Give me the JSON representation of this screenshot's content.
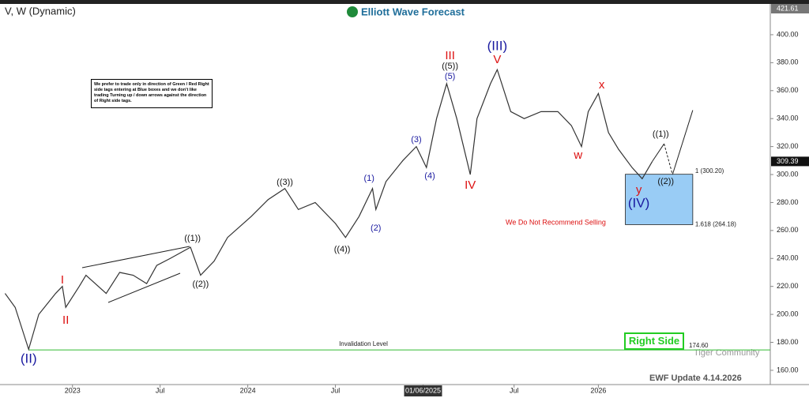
{
  "chart_data": {
    "type": "line",
    "title": "V, W (Dynamic)",
    "brand": "Elliott Wave Forecast",
    "note": "We prefer to trade only in direction of Green / Red Right side tags entering at Blue boxes and we don't like trading Turning up / down arrows against the direction of Right side tags.",
    "x": [
      -20,
      -17,
      -13,
      -10,
      -5,
      -3,
      -2,
      2,
      4,
      10,
      14,
      18,
      22,
      25,
      29,
      35,
      38,
      42,
      46,
      53,
      58,
      63,
      67,
      72,
      78,
      81,
      85,
      89,
      90,
      93,
      98,
      102,
      105,
      108,
      111,
      114,
      118,
      120,
      124,
      126,
      130,
      134,
      139,
      144,
      148,
      151,
      153,
      156,
      159,
      162,
      166,
      169,
      172
    ],
    "series": [
      {
        "name": "V",
        "color": "#333333",
        "values": [
          215,
          205,
          175,
          200,
          215,
          220,
          205,
          220,
          228,
          215,
          230,
          228,
          222,
          235,
          240,
          248,
          228,
          238,
          255,
          270,
          282,
          290,
          275,
          280,
          265,
          255,
          270,
          290,
          275,
          295,
          310,
          320,
          305,
          340,
          365,
          340,
          300,
          340,
          365,
          375,
          345,
          340,
          345,
          345,
          335,
          320,
          345,
          358,
          330,
          318,
          305,
          297,
          309.39
        ]
      }
    ],
    "xlim": [
      -21.5,
      207
    ],
    "xticks": [
      {
        "value": 0,
        "label": "2023"
      },
      {
        "value": 26,
        "label": "Jul"
      },
      {
        "value": 52,
        "label": "2024"
      },
      {
        "value": 78,
        "label": "Jul"
      },
      {
        "value": 104,
        "label": "01/06/2025"
      },
      {
        "value": 131,
        "label": "Jul"
      },
      {
        "value": 156,
        "label": "2026"
      }
    ],
    "ylim": [
      149.8,
      420.3
    ],
    "yticks": [
      {
        "value": 160,
        "label": "160.00"
      },
      {
        "value": 180,
        "label": "180.00"
      },
      {
        "value": 200,
        "label": "200.00"
      },
      {
        "value": 220,
        "label": "220.00"
      },
      {
        "value": 240,
        "label": "240.00"
      },
      {
        "value": 260,
        "label": "260.00"
      },
      {
        "value": 280,
        "label": "280.00"
      },
      {
        "value": 300,
        "label": "300.00"
      },
      {
        "value": 320,
        "label": "320.00"
      },
      {
        "value": 340,
        "label": "340.00"
      },
      {
        "value": 360,
        "label": "360.00"
      },
      {
        "value": 380,
        "label": "380.00"
      },
      {
        "value": 400,
        "label": "400.00"
      }
    ],
    "high_label": {
      "value": 421.61,
      "label": "421.61"
    },
    "last_label": {
      "value": 309.39,
      "label": "309.39"
    },
    "invalidation": {
      "value": 174.6,
      "label": "174.60",
      "text": "Invalidation Level",
      "start": -13
    },
    "box": {
      "x0": 164,
      "x1": 184,
      "top": 300.2,
      "bottom": 264.18,
      "top_label": "1 (300.20)",
      "bottom_label": "1.618 (264.18)",
      "color": "#99ccf5"
    },
    "projection": {
      "x": [
        172,
        175.5,
        178,
        184
      ],
      "values": [
        309.39,
        322,
        300,
        346
      ]
    },
    "annotations": [
      {
        "text": "(II)",
        "x": -13,
        "y": 167.9,
        "color": "#1a1aa0"
      },
      {
        "text": "I",
        "x": -3,
        "y": 224.4,
        "color": "#dd1111"
      },
      {
        "text": "II",
        "x": -2,
        "y": 195.6,
        "color": "#dd1111"
      },
      {
        "text": "((1))",
        "x": 35.6,
        "y": 254.3,
        "color": "#111111"
      },
      {
        "text": "((2))",
        "x": 38,
        "y": 221.5,
        "color": "#111111"
      },
      {
        "text": "((3))",
        "x": 63,
        "y": 294.4,
        "color": "#111111"
      },
      {
        "text": "((4))",
        "x": 80,
        "y": 246.4,
        "color": "#111111"
      },
      {
        "text": "(1)",
        "x": 88,
        "y": 297.2,
        "color": "#1a1aa0"
      },
      {
        "text": "(2)",
        "x": 90,
        "y": 261.6,
        "color": "#1a1aa0"
      },
      {
        "text": "(3)",
        "x": 102,
        "y": 324.9,
        "color": "#1a1aa0"
      },
      {
        "text": "(4)",
        "x": 106,
        "y": 298.9,
        "color": "#1a1aa0"
      },
      {
        "text": "III",
        "x": 112,
        "y": 384.8,
        "color": "#dd1111"
      },
      {
        "text": "((5))",
        "x": 112,
        "y": 377.4,
        "color": "#111111"
      },
      {
        "text": "(5)",
        "x": 112,
        "y": 370,
        "color": "#1a1aa0"
      },
      {
        "text": "(III)",
        "x": 126,
        "y": 391.5,
        "color": "#1a1aa0"
      },
      {
        "text": "V",
        "x": 126,
        "y": 381.9,
        "color": "#dd1111"
      },
      {
        "text": "IV",
        "x": 118,
        "y": 292,
        "color": "#dd1111"
      },
      {
        "text": "w",
        "x": 150,
        "y": 313.6,
        "color": "#dd1111"
      },
      {
        "text": "x",
        "x": 157,
        "y": 363.9,
        "color": "#dd1111"
      },
      {
        "text": "y",
        "x": 168,
        "y": 288.8,
        "color": "#dd1111"
      },
      {
        "text": "(IV)",
        "x": 168,
        "y": 279.2,
        "color": "#1a1aa0"
      },
      {
        "text": "((1))",
        "x": 174.5,
        "y": 328.8,
        "color": "#111111"
      },
      {
        "text": "((2))",
        "x": 176,
        "y": 295,
        "color": "#111111"
      }
    ],
    "warning": "We Do Not Recommend Selling",
    "right_side": "Right Side",
    "footer": "EWF Update 4.14.2026",
    "watermark": "Tiger Community"
  }
}
